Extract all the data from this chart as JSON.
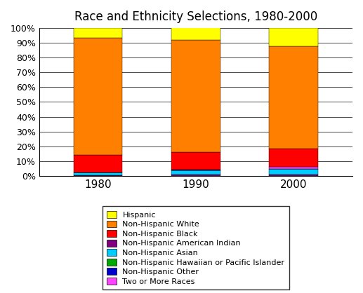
{
  "title": "Race and Ethnicity Selections, 1980-2000",
  "years": [
    "1980",
    "1990",
    "2000"
  ],
  "categories": [
    "Hispanic",
    "Non-Hispanic White",
    "Non-Hispanic Black",
    "Non-Hispanic American Indian",
    "Non-Hispanic Asian",
    "Non-Hispanic Hawaiian or Pacific Islander",
    "Non-Hispanic Other",
    "Two or More Races"
  ],
  "colors": [
    "#FFFF00",
    "#FF8000",
    "#FF0000",
    "#800080",
    "#00CCFF",
    "#00AA00",
    "#0000CC",
    "#FF44FF"
  ],
  "stack_order": [
    3,
    4,
    5,
    6,
    7,
    2,
    1,
    0
  ],
  "data": {
    "1980": [
      6.4,
      79.6,
      11.7,
      0.6,
      1.5,
      0.0,
      0.2,
      0.0
    ],
    "1990": [
      9.0,
      75.7,
      12.1,
      0.8,
      2.9,
      0.0,
      0.4,
      0.0
    ],
    "2000": [
      12.5,
      69.1,
      12.3,
      0.9,
      3.6,
      0.1,
      0.2,
      1.3
    ]
  },
  "ylim": [
    0,
    100
  ],
  "ytick_labels": [
    "0%",
    "10%",
    "20%",
    "30%",
    "40%",
    "50%",
    "60%",
    "70%",
    "80%",
    "90%",
    "100%"
  ],
  "ytick_values": [
    0,
    10,
    20,
    30,
    40,
    50,
    60,
    70,
    80,
    90,
    100
  ],
  "bar_width": 0.5,
  "figsize": [
    5.17,
    4.18
  ],
  "dpi": 100
}
